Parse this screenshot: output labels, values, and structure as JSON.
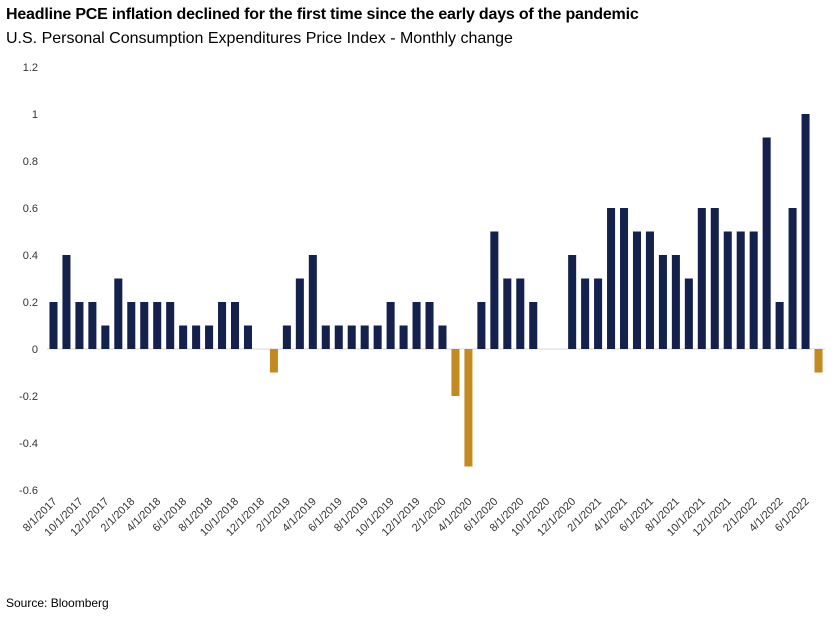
{
  "header": {
    "title": "Headline PCE inflation declined for the first time since the early days of the pandemic",
    "subtitle": "U.S. Personal Consumption Expenditures Price Index - Monthly change"
  },
  "footer": {
    "source": "Source: Bloomberg"
  },
  "colors": {
    "positive": "#14214d",
    "negative": "#c48a22",
    "axis": "#d9d9d9",
    "text": "#333333"
  },
  "chart_data": {
    "type": "bar",
    "title": "Headline PCE inflation declined for the first time since the early days of the pandemic",
    "subtitle": "U.S. Personal Consumption Expenditures Price Index - Monthly change",
    "xlabel": "",
    "ylabel": "",
    "ylim": [
      -0.6,
      1.2
    ],
    "yticks": [
      "1.2",
      "1",
      "0.8",
      "0.6",
      "0.4",
      "0.2",
      "0",
      "-0.2",
      "-0.4",
      "-0.6"
    ],
    "grid": false,
    "legend": "none",
    "categories": [
      "8/1/2017",
      "9/1/2017",
      "10/1/2017",
      "11/1/2017",
      "12/1/2017",
      "1/1/2018",
      "2/1/2018",
      "3/1/2018",
      "4/1/2018",
      "5/1/2018",
      "6/1/2018",
      "7/1/2018",
      "8/1/2018",
      "9/1/2018",
      "10/1/2018",
      "11/1/2018",
      "12/1/2018",
      "1/1/2019",
      "2/1/2019",
      "3/1/2019",
      "4/1/2019",
      "5/1/2019",
      "6/1/2019",
      "7/1/2019",
      "8/1/2019",
      "9/1/2019",
      "10/1/2019",
      "11/1/2019",
      "12/1/2019",
      "1/1/2020",
      "2/1/2020",
      "3/1/2020",
      "4/1/2020",
      "5/1/2020",
      "6/1/2020",
      "7/1/2020",
      "8/1/2020",
      "9/1/2020",
      "10/1/2020",
      "11/1/2020",
      "12/1/2020",
      "1/1/2021",
      "2/1/2021",
      "3/1/2021",
      "4/1/2021",
      "5/1/2021",
      "6/1/2021",
      "7/1/2021",
      "8/1/2021",
      "9/1/2021",
      "10/1/2021",
      "11/1/2021",
      "12/1/2021",
      "1/1/2022",
      "2/1/2022",
      "3/1/2022",
      "4/1/2022",
      "5/1/2022",
      "6/1/2022",
      "7/1/2022"
    ],
    "values": [
      0.2,
      0.4,
      0.2,
      0.2,
      0.1,
      0.3,
      0.2,
      0.2,
      0.2,
      0.2,
      0.1,
      0.1,
      0.1,
      0.2,
      0.2,
      0.1,
      0.0,
      -0.1,
      0.1,
      0.3,
      0.4,
      0.1,
      0.1,
      0.1,
      0.1,
      0.1,
      0.2,
      0.1,
      0.2,
      0.2,
      0.1,
      -0.2,
      -0.5,
      0.2,
      0.5,
      0.3,
      0.3,
      0.2,
      0.0,
      0.0,
      0.4,
      0.3,
      0.3,
      0.6,
      0.6,
      0.5,
      0.5,
      0.4,
      0.4,
      0.3,
      0.6,
      0.6,
      0.5,
      0.5,
      0.5,
      0.9,
      0.2,
      0.6,
      1.0,
      -0.1
    ],
    "xtick_labels": [
      "8/1/2017",
      "10/1/2017",
      "12/1/2017",
      "2/1/2018",
      "4/1/2018",
      "6/1/2018",
      "8/1/2018",
      "10/1/2018",
      "12/1/2018",
      "2/1/2019",
      "4/1/2019",
      "6/1/2019",
      "8/1/2019",
      "10/1/2019",
      "12/1/2019",
      "2/1/2020",
      "4/1/2020",
      "6/1/2020",
      "8/1/2020",
      "10/1/2020",
      "12/1/2020",
      "2/1/2021",
      "4/1/2021",
      "6/1/2021",
      "8/1/2021",
      "10/1/2021",
      "12/1/2021",
      "2/1/2022",
      "4/1/2022",
      "6/1/2022"
    ]
  }
}
